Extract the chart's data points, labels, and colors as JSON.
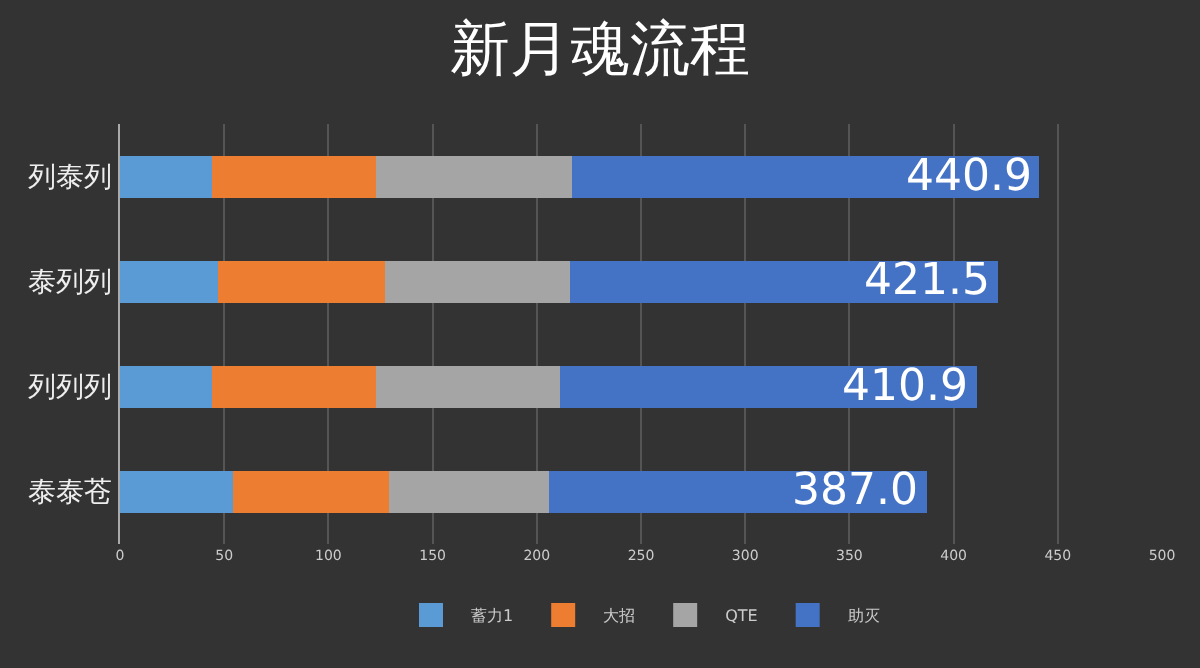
{
  "chart_data": {
    "type": "bar",
    "orientation": "horizontal",
    "stacked": true,
    "title": "新月魂流程",
    "categories": [
      "列泰列",
      "泰列列",
      "列列列",
      "泰泰苍"
    ],
    "series": [
      {
        "name": "蓄力1",
        "color": "#5b9bd5",
        "values": [
          44,
          47,
          44,
          54
        ]
      },
      {
        "name": "大招",
        "color": "#ed7d31",
        "values": [
          79,
          80,
          79,
          75
        ]
      },
      {
        "name": "QTE",
        "color": "#a5a5a5",
        "values": [
          94,
          89,
          88,
          77
        ]
      },
      {
        "name": "助灭",
        "color": "#4472c4",
        "values": [
          224,
          205.5,
          200,
          181
        ]
      }
    ],
    "totals": [
      "440.9",
      "421.5",
      "410.9",
      "387.0"
    ],
    "xlim": [
      0,
      500
    ],
    "xticks": [
      0,
      50,
      100,
      150,
      200,
      250,
      300,
      350,
      400,
      450,
      500
    ],
    "grid": "x",
    "legend": "bottom"
  }
}
